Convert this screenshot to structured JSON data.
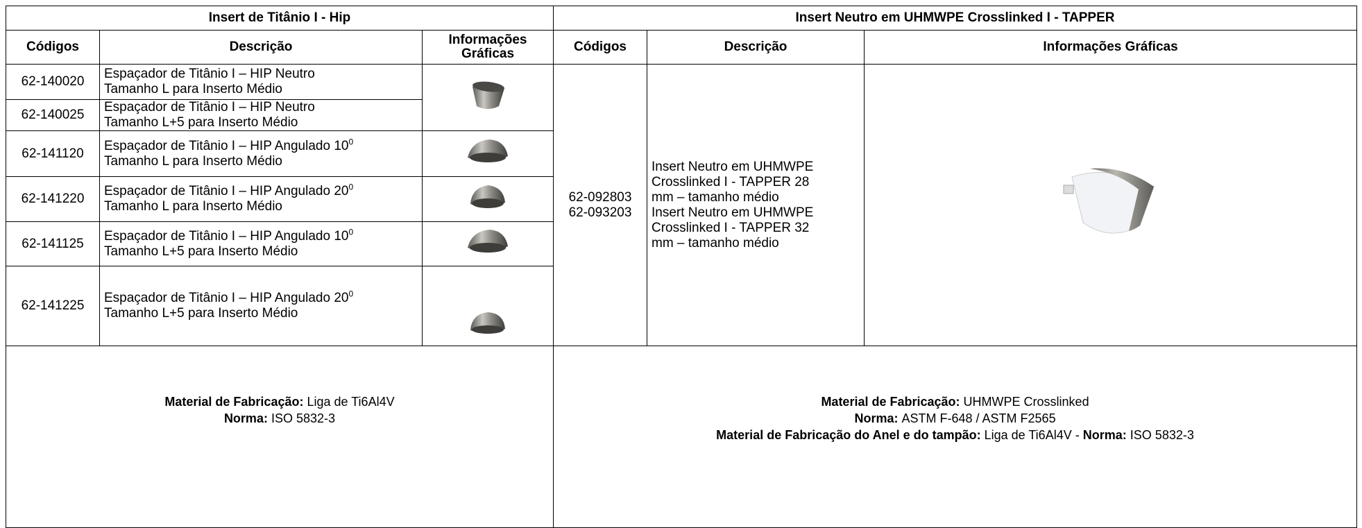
{
  "left": {
    "title": "Insert de Titânio I - Hip",
    "headers": [
      "Códigos",
      "Descrição",
      "Informações Gráficas"
    ],
    "rows": [
      {
        "code": "62-140020",
        "line1": "Espaçador de Titânio I – HIP Neutro",
        "line2": "Tamanho L para Inserto Médio"
      },
      {
        "code": "62-140025",
        "line1": "Espaçador de Titânio I – HIP Neutro",
        "line2": "Tamanho L+5 para Inserto Médio"
      },
      {
        "code": "62-141120",
        "line1": "Espaçador de Titânio I – HIP Angulado 10",
        "sup": "0",
        "line2": "Tamanho L para Inserto Médio"
      },
      {
        "code": "62-141220",
        "line1": "Espaçador de Titânio I – HIP Angulado 20",
        "sup": "0",
        "line2": "Tamanho L para Inserto Médio"
      },
      {
        "code": "62-141125",
        "line1": "Espaçador de Titânio I – HIP Angulado 10",
        "sup": "0",
        "line2": "Tamanho L+5 para Inserto Médio"
      },
      {
        "code": "62-141225",
        "line1": "Espaçador de Titânio I – HIP Angulado 20",
        "sup": "0",
        "line2": "Tamanho L+5 para Inserto Médio"
      }
    ],
    "footer": [
      [
        {
          "text": "Material de Fabricação:",
          "bold": true
        },
        {
          "text": "Liga de Ti6Al4V",
          "bold": false
        }
      ],
      [
        {
          "text": "Norma:",
          "bold": true
        },
        {
          "text": "ISO 5832-3",
          "bold": false
        }
      ]
    ]
  },
  "right": {
    "title": "Insert Neutro em UHMWPE Crosslinked I - TAPPER",
    "headers": [
      "Códigos",
      "Descrição",
      "Informações Gráficas"
    ],
    "codes": [
      "62-092803",
      "62-093203"
    ],
    "description": [
      "Insert Neutro em UHMWPE",
      "Crosslinked I - TAPPER 28",
      "mm – tamanho médio",
      "Insert Neutro em UHMWPE",
      "Crosslinked I - TAPPER 32",
      "mm – tamanho médio"
    ],
    "footer": [
      [
        {
          "text": "Material de Fabricação:",
          "bold": true
        },
        {
          "text": "UHMWPE Crosslinked",
          "bold": false
        }
      ],
      [
        {
          "text": "Norma:",
          "bold": true
        },
        {
          "text": "ASTM F-648 / ASTM F2565",
          "bold": false
        }
      ],
      [
        {
          "text": "Material de Fabricação do Anel e do tampão:",
          "bold": true
        },
        {
          "text": "Liga de Ti6Al4V -",
          "bold": false
        },
        {
          "text": "Norma:",
          "bold": true
        },
        {
          "text": "ISO 5832-3",
          "bold": false
        }
      ]
    ]
  }
}
